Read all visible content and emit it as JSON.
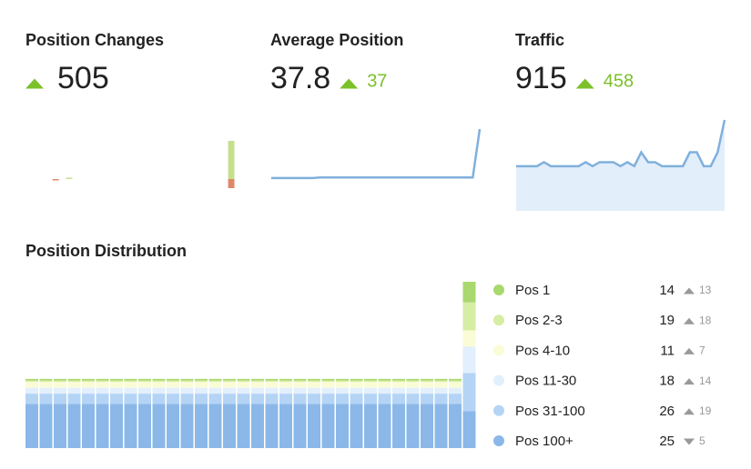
{
  "chart_data": [
    {
      "type": "diverging-bar",
      "title": "Position Changes",
      "value": 505,
      "change_direction": "up",
      "series": [
        {
          "color": "#c5e08a",
          "values": [
            0,
            0,
            0,
            0,
            0,
            0,
            5,
            0,
            0,
            0,
            0,
            0,
            0,
            0,
            0,
            0,
            0,
            0,
            0,
            0,
            0,
            0,
            0,
            0,
            0,
            0,
            0,
            0,
            0,
            0,
            420
          ]
        },
        {
          "color": "#e0876a",
          "values": [
            0,
            0,
            0,
            0,
            5,
            0,
            0,
            0,
            0,
            0,
            0,
            0,
            0,
            0,
            0,
            0,
            0,
            0,
            0,
            0,
            0,
            0,
            0,
            0,
            0,
            0,
            0,
            0,
            0,
            0,
            100
          ]
        }
      ]
    },
    {
      "type": "line",
      "title": "Average Position",
      "value": 37.8,
      "change": 37,
      "change_direction": "up",
      "color": "#7fb0dc",
      "values": [
        0.8,
        0.8,
        0.8,
        0.8,
        0.8,
        0.8,
        0.8,
        1.2,
        1.2,
        1.2,
        1.2,
        1.2,
        1.2,
        1.2,
        1.2,
        1.2,
        1.2,
        1.2,
        1.2,
        1.2,
        1.2,
        1.2,
        1.2,
        1.2,
        1.2,
        1.2,
        1.2,
        1.2,
        1.2,
        1.2,
        37.8
      ]
    },
    {
      "type": "area",
      "title": "Traffic",
      "value": 915,
      "change": 458,
      "change_direction": "up",
      "color": "#7fb0dc",
      "fill": "#e3eefb",
      "values": [
        450,
        450,
        450,
        450,
        490,
        450,
        450,
        450,
        450,
        450,
        490,
        450,
        490,
        490,
        490,
        450,
        490,
        450,
        590,
        490,
        490,
        450,
        450,
        450,
        450,
        590,
        590,
        450,
        450,
        590,
        915
      ]
    },
    {
      "type": "stacked-bar",
      "title": "Position Distribution",
      "legend": "right",
      "series": [
        {
          "name": "Pos 1",
          "color": "#a9d86e",
          "change": 13,
          "change_direction": "up",
          "values": [
            1,
            1,
            1,
            1,
            1,
            1,
            1,
            1,
            1,
            1,
            1,
            1,
            1,
            1,
            1,
            1,
            1,
            1,
            1,
            1,
            1,
            1,
            1,
            1,
            1,
            1,
            1,
            1,
            1,
            1,
            1,
            14
          ]
        },
        {
          "name": "Pos 2-3",
          "color": "#d6eda4",
          "change": 18,
          "change_direction": "up",
          "values": [
            1,
            1,
            1,
            1,
            1,
            1,
            1,
            1,
            1,
            1,
            1,
            1,
            1,
            1,
            1,
            1,
            1,
            1,
            1,
            1,
            1,
            1,
            1,
            1,
            1,
            1,
            1,
            1,
            1,
            1,
            1,
            19
          ]
        },
        {
          "name": "Pos 4-10",
          "color": "#fafcd6",
          "change": 7,
          "change_direction": "up",
          "values": [
            4,
            4,
            4,
            4,
            4,
            4,
            4,
            4,
            4,
            4,
            4,
            4,
            4,
            4,
            4,
            4,
            4,
            4,
            4,
            4,
            4,
            4,
            4,
            4,
            4,
            4,
            4,
            4,
            4,
            4,
            4,
            11
          ]
        },
        {
          "name": "Pos 11-30",
          "color": "#e2effc",
          "change": 14,
          "change_direction": "up",
          "values": [
            4,
            4,
            4,
            4,
            4,
            4,
            4,
            4,
            4,
            4,
            4,
            4,
            4,
            4,
            4,
            4,
            4,
            4,
            4,
            4,
            4,
            4,
            4,
            4,
            4,
            4,
            4,
            4,
            4,
            4,
            4,
            18
          ]
        },
        {
          "name": "Pos 31-100",
          "color": "#b5d4f5",
          "change": 19,
          "change_direction": "up",
          "values": [
            7,
            7,
            7,
            7,
            7,
            7,
            7,
            7,
            7,
            7,
            7,
            7,
            7,
            7,
            7,
            7,
            7,
            7,
            7,
            7,
            7,
            7,
            7,
            7,
            7,
            7,
            7,
            7,
            7,
            7,
            7,
            26
          ]
        },
        {
          "name": "Pos 100+",
          "color": "#8bb8e8",
          "change": 5,
          "change_direction": "down",
          "values": [
            30,
            30,
            30,
            30,
            30,
            30,
            30,
            30,
            30,
            30,
            30,
            30,
            30,
            30,
            30,
            30,
            30,
            30,
            30,
            30,
            30,
            30,
            30,
            30,
            30,
            30,
            30,
            30,
            30,
            30,
            30,
            25
          ]
        }
      ]
    }
  ]
}
